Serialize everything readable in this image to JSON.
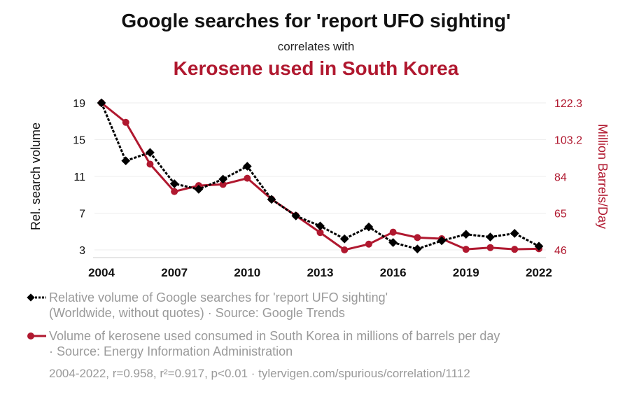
{
  "header": {
    "title": "Google searches for 'report UFO sighting'",
    "subtitle": "correlates with",
    "title2": "Kerosene used in South Korea"
  },
  "colors": {
    "series1": "#000000",
    "series2": "#b0182f",
    "axis_right": "#b0182f",
    "grid": "#eeeeee",
    "legend_text": "#9a9a9a"
  },
  "chart_data": {
    "type": "line",
    "title": "Google searches for 'report UFO sighting'",
    "x": [
      2004,
      2005,
      2006,
      2007,
      2008,
      2009,
      2010,
      2011,
      2012,
      2013,
      2014,
      2015,
      2016,
      2017,
      2018,
      2019,
      2020,
      2021,
      2022
    ],
    "x_ticks": [
      2004,
      2007,
      2010,
      2013,
      2016,
      2019,
      2022
    ],
    "ylabel": "Rel. search volume",
    "ylabel_right": "Million Barrels/Day",
    "ylim": [
      3,
      19
    ],
    "yticks": [
      3,
      7,
      11,
      15,
      19
    ],
    "ylim_right": [
      46,
      122.3
    ],
    "yticks_right": [
      "46",
      "65",
      "84",
      "103.2",
      "122.3"
    ],
    "series": [
      {
        "name": "Relative volume of Google searches for 'report UFO sighting'",
        "axis": "left",
        "marker": "diamond",
        "dashed": true,
        "values": [
          19,
          12.7,
          13.6,
          10.2,
          9.6,
          10.7,
          12.1,
          8.5,
          6.7,
          5.6,
          4.2,
          5.5,
          3.8,
          3.1,
          4.0,
          4.7,
          4.4,
          4.8,
          3.4
        ]
      },
      {
        "name": "Volume of kerosene used consumed in South Korea in millions of barrels per day",
        "axis": "right",
        "marker": "circle",
        "dashed": false,
        "values": [
          122.3,
          112.2,
          90.5,
          76.3,
          79.4,
          80.0,
          83.2,
          72.3,
          63.8,
          55.0,
          46.0,
          49.0,
          55.2,
          52.4,
          51.8,
          46.3,
          47.2,
          46.3,
          46.6
        ]
      }
    ]
  },
  "legend": {
    "item1_line1": "Relative volume of Google searches for 'report UFO sighting'",
    "item1_line2": "(Worldwide, without quotes) · Source: Google Trends",
    "item2_line1": "Volume of kerosene used consumed in South Korea in millions of barrels per day",
    "item2_line2": "· Source: Energy Information Administration"
  },
  "footer": "2004-2022, r=0.958, r²=0.917, p<0.01 · tylervigen.com/spurious/correlation/1112"
}
